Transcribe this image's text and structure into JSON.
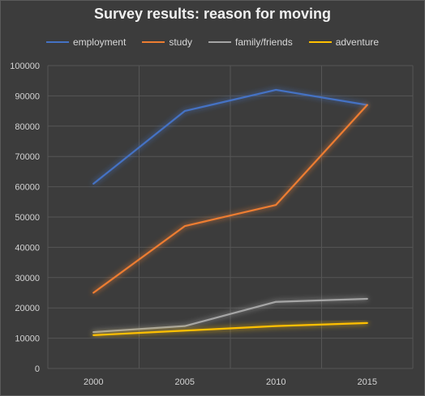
{
  "chart_data": {
    "type": "line",
    "title": "Survey results: reason for moving",
    "xlabel": "",
    "ylabel": "",
    "categories": [
      "2000",
      "2005",
      "2010",
      "2015"
    ],
    "ylim": [
      0,
      100000
    ],
    "yticks": [
      0,
      10000,
      20000,
      30000,
      40000,
      50000,
      60000,
      70000,
      80000,
      90000,
      100000
    ],
    "grid": true,
    "legend_position": "top",
    "series": [
      {
        "name": "employment",
        "color": "#4472c4",
        "values": [
          61000,
          85000,
          92000,
          87000
        ]
      },
      {
        "name": "study",
        "color": "#ed7d31",
        "values": [
          25000,
          47000,
          54000,
          87000
        ]
      },
      {
        "name": "family/friends",
        "color": "#a5a5a5",
        "values": [
          12000,
          14000,
          22000,
          23000
        ]
      },
      {
        "name": "adventure",
        "color": "#ffc000",
        "values": [
          11000,
          12500,
          14000,
          15000
        ]
      }
    ]
  }
}
